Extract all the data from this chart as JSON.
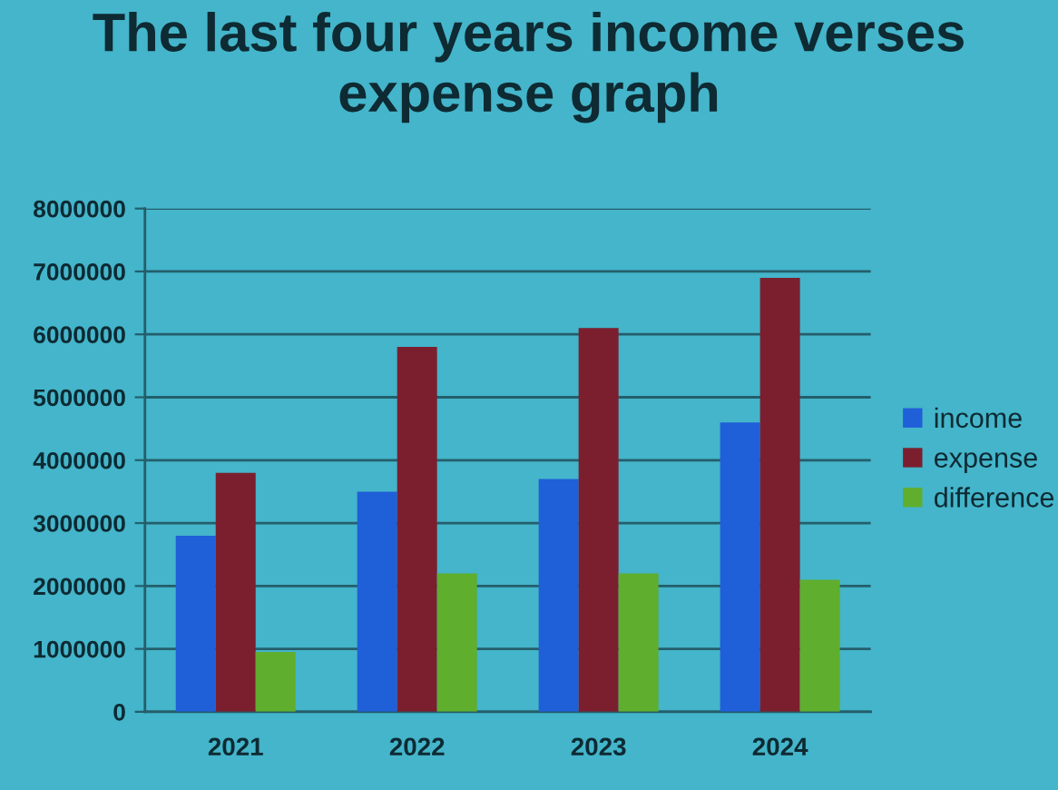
{
  "chart_data": {
    "type": "bar",
    "title": "The last four years income verses expense graph",
    "categories": [
      "2021",
      "2022",
      "2023",
      "2024"
    ],
    "series": [
      {
        "name": "income",
        "color": "#1f5fd8",
        "values": [
          2800000,
          3500000,
          3700000,
          4600000
        ]
      },
      {
        "name": "expense",
        "color": "#7b1f2f",
        "values": [
          3800000,
          5800000,
          6100000,
          6900000
        ]
      },
      {
        "name": "difference",
        "color": "#5fae2e",
        "values": [
          950000,
          2200000,
          2200000,
          2100000
        ]
      }
    ],
    "ylim": [
      0,
      8000000
    ],
    "yticks": [
      0,
      1000000,
      2000000,
      3000000,
      4000000,
      5000000,
      6000000,
      7000000,
      8000000
    ],
    "grid": "y",
    "legend": "right"
  }
}
